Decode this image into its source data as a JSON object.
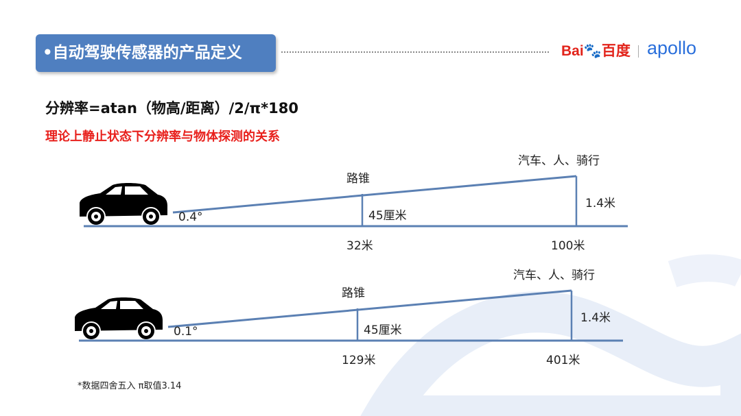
{
  "header": {
    "title": "•自动驾驶传感器的产品定义",
    "logo_baidu": "Bai百度",
    "logo_apollo": "apollo"
  },
  "formula": "分辨率=atan（物高/距离）/2/π*180",
  "subtitle": "理论上静止状态下分辨率与物体探测的关系",
  "diagrams": [
    {
      "angle": "0.4°",
      "cone_label": "路锥",
      "cone_height": "45厘米",
      "cone_distance": "32米",
      "vehicle_label": "汽车、人、骑行",
      "vehicle_height": "1.4米",
      "vehicle_distance": "100米"
    },
    {
      "angle": "0.1°",
      "cone_label": "路锥",
      "cone_height": "45厘米",
      "cone_distance": "129米",
      "vehicle_label": "汽车、人、骑行",
      "vehicle_height": "1.4米",
      "vehicle_distance": "401米"
    }
  ],
  "footnote": "*数据四舍五入 π取值3.14",
  "colors": {
    "title_bg": "#4f7fc0",
    "accent_red": "#e8201c",
    "line": "#5b80b3"
  }
}
